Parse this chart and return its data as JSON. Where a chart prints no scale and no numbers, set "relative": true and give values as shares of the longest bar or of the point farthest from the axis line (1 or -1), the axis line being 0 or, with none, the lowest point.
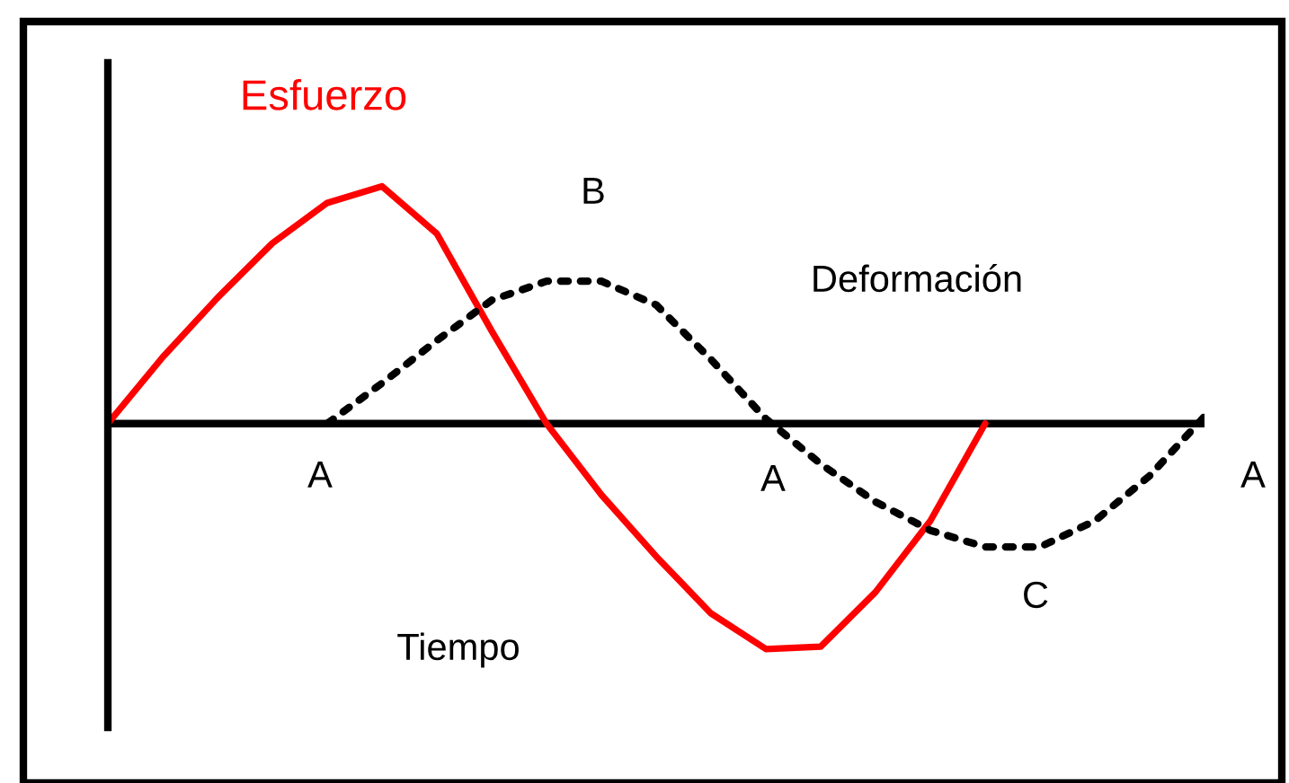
{
  "chart_data": {
    "type": "line",
    "relative": true,
    "xlabel": "Tiempo",
    "categories": [
      null,
      null,
      null,
      null,
      null,
      null,
      null,
      null,
      null,
      null,
      null,
      null,
      null,
      null,
      null,
      null,
      null,
      null,
      null,
      null,
      null
    ],
    "series": [
      {
        "name": "Esfuerzo",
        "color": "#ff0000",
        "line_style": "solid",
        "values": [
          0,
          0.28,
          0.53,
          0.76,
          0.93,
          1.0,
          0.8,
          0.39,
          0,
          -0.3,
          -0.56,
          -0.8,
          -0.95,
          -0.94,
          -0.71,
          -0.41,
          0,
          null,
          null,
          null,
          null
        ]
      },
      {
        "name": "Deformación",
        "color": "#000000",
        "line_style": "dotted",
        "values": [
          null,
          null,
          null,
          null,
          0,
          0.17,
          0.35,
          0.52,
          0.6,
          0.6,
          0.5,
          0.27,
          0.02,
          -0.17,
          -0.33,
          -0.45,
          -0.52,
          -0.52,
          -0.41,
          -0.22,
          0.03
        ]
      }
    ],
    "annotations": [
      "B",
      "C",
      "A",
      "A",
      "A"
    ],
    "legend": false,
    "marker": "none"
  }
}
